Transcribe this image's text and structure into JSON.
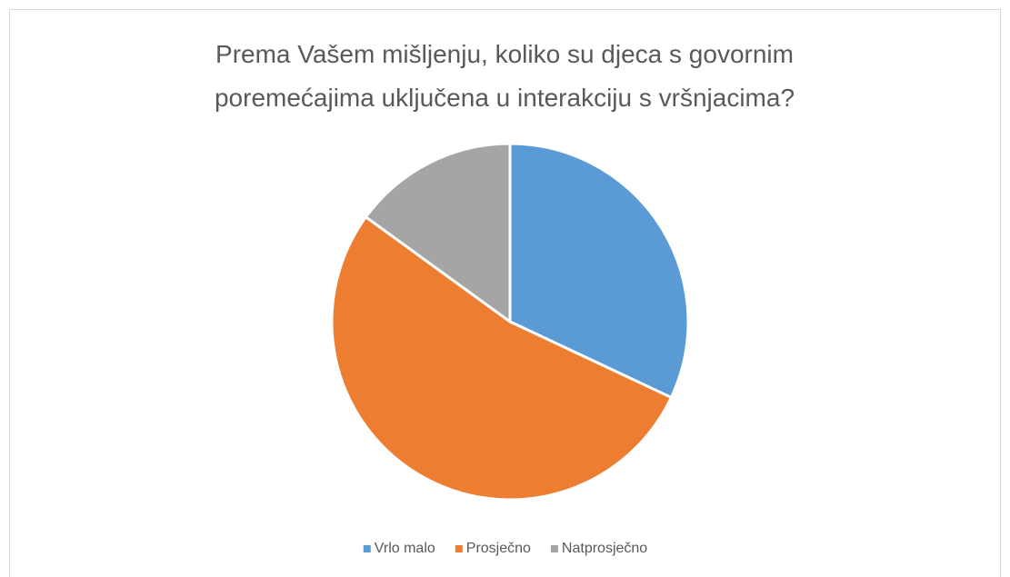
{
  "chart_data": {
    "type": "pie",
    "title": "Prema Vašem mišljenju, koliko su djeca s govornim poremećajima uključena u interakciju s vršnjacima?",
    "categories": [
      "Vrlo malo",
      "Prosječno",
      "Natprosječno"
    ],
    "values": [
      32,
      53,
      15
    ],
    "colors": [
      "#5b9bd5",
      "#ed7d31",
      "#a5a5a5"
    ],
    "legend": "bottom"
  }
}
